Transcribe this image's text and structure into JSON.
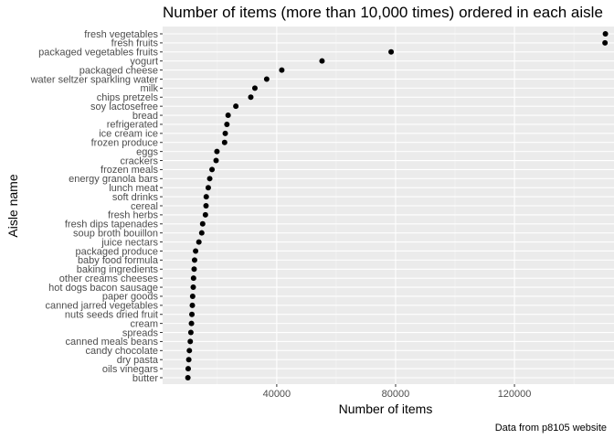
{
  "chart_data": {
    "type": "scatter",
    "title": "Number of items (more than 10,000 times) ordered in each aisle",
    "xlabel": "Number of items",
    "ylabel": "Aisle name",
    "caption": "Data from p8105 website",
    "xlim": [
      1600,
      153500
    ],
    "x_ticks": [
      40000,
      80000,
      120000
    ],
    "x_tick_labels": [
      "40000",
      "80000",
      "120000"
    ],
    "grid": true,
    "panel_background": "#ebebeb",
    "point_color": "#000000",
    "categories": [
      "fresh vegetables",
      "fresh fruits",
      "packaged vegetables fruits",
      "yogurt",
      "packaged cheese",
      "water seltzer sparkling water",
      "milk",
      "chips pretzels",
      "soy lactosefree",
      "bread",
      "refrigerated",
      "ice cream ice",
      "frozen produce",
      "eggs",
      "crackers",
      "frozen meals",
      "energy granola bars",
      "lunch meat",
      "soft drinks",
      "cereal",
      "fresh herbs",
      "fresh dips tapenades",
      "soup broth bouillon",
      "juice nectars",
      "packaged produce",
      "baby food formula",
      "baking ingredients",
      "other creams cheeses",
      "hot dogs bacon sausage",
      "paper goods",
      "canned jarred vegetables",
      "nuts seeds dried fruit",
      "cream",
      "spreads",
      "canned meals beans",
      "candy chocolate",
      "dry pasta",
      "oils vinegars",
      "butter"
    ],
    "values": [
      150609,
      150473,
      78493,
      55240,
      41699,
      36617,
      32644,
      31269,
      26240,
      23635,
      23228,
      22676,
      22453,
      19875,
      19592,
      18221,
      17449,
      16957,
      16279,
      16201,
      16000,
      15069,
      14760,
      13800,
      12700,
      12350,
      12200,
      12000,
      11900,
      11700,
      11600,
      11450,
      11300,
      11100,
      10900,
      10600,
      10400,
      10200,
      10100
    ]
  }
}
